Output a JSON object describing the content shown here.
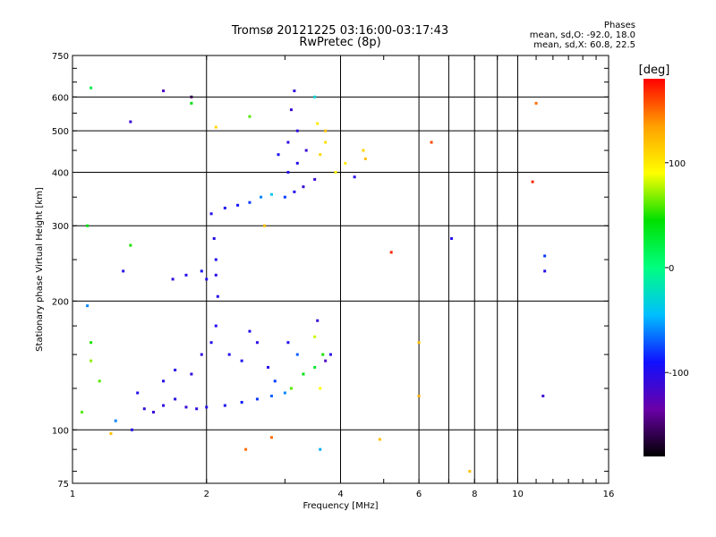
{
  "chart_data": {
    "type": "scatter",
    "title": "Tromsø 20121225 03:16:00-03:17:43",
    "subtitle": "RwPretec (8p)",
    "phase_heading": "Phases",
    "phase_o": "mean, sd,O:  -92.0,  18.0",
    "phase_x": "mean, sd,X:   60.8,  22.5",
    "xlabel": "Frequency [MHz]",
    "ylabel": "Stationary phase Virtual Height [km]",
    "x_scale": "log",
    "y_scale": "log",
    "xlim": [
      1,
      16
    ],
    "ylim": [
      75,
      750
    ],
    "x_ticks": [
      1,
      2,
      4,
      6,
      8,
      10,
      16
    ],
    "y_ticks": [
      75,
      100,
      200,
      300,
      400,
      500,
      600,
      750
    ],
    "x_gridlines": [
      2,
      4,
      6,
      7,
      8,
      9,
      10
    ],
    "y_gridlines": [
      100,
      200,
      300,
      400,
      500,
      600
    ],
    "grid": true,
    "colorbar": {
      "label": "[deg]",
      "range": [
        -180,
        180
      ],
      "ticks": [
        100,
        0,
        -100
      ],
      "stops": [
        "#000000",
        "#6a00a8",
        "#1010ff",
        "#00bfff",
        "#00ff80",
        "#00e000",
        "#ffff00",
        "#ffa000",
        "#ff0000"
      ]
    },
    "series": [
      {
        "points": [
          [
            1.36,
            100,
            -100
          ],
          [
            1.45,
            112,
            -108
          ],
          [
            1.52,
            110,
            -110
          ],
          [
            1.6,
            114,
            -106
          ],
          [
            1.7,
            118,
            -102
          ],
          [
            1.8,
            113,
            -110
          ],
          [
            1.9,
            112,
            -104
          ],
          [
            2.0,
            113,
            -100
          ],
          [
            2.2,
            114,
            -96
          ],
          [
            2.4,
            116,
            -88
          ],
          [
            2.6,
            118,
            -80
          ],
          [
            2.8,
            120,
            -70
          ],
          [
            3.0,
            122,
            -60
          ],
          [
            1.4,
            122,
            -98
          ],
          [
            1.6,
            130,
            -100
          ],
          [
            1.7,
            138,
            -102
          ],
          [
            1.85,
            135,
            -106
          ],
          [
            1.95,
            150,
            -104
          ],
          [
            2.05,
            160,
            -100
          ],
          [
            2.1,
            175,
            -100
          ],
          [
            2.25,
            150,
            -98
          ],
          [
            2.4,
            145,
            -96
          ],
          [
            2.5,
            170,
            -100
          ],
          [
            2.6,
            160,
            -104
          ],
          [
            2.75,
            140,
            -100
          ],
          [
            2.85,
            130,
            -80
          ],
          [
            3.05,
            160,
            -100
          ],
          [
            3.2,
            150,
            -70
          ],
          [
            3.3,
            135,
            40
          ],
          [
            3.1,
            125,
            60
          ],
          [
            3.5,
            140,
            30
          ],
          [
            3.5,
            165,
            80
          ],
          [
            3.6,
            125,
            90
          ],
          [
            3.65,
            150,
            50
          ],
          [
            3.55,
            180,
            -110
          ],
          [
            3.7,
            145,
            -120
          ],
          [
            2.12,
            205,
            -100
          ],
          [
            2.1,
            250,
            -100
          ],
          [
            2.08,
            280,
            -102
          ],
          [
            1.68,
            225,
            -104
          ],
          [
            1.8,
            230,
            -100
          ],
          [
            1.95,
            235,
            -96
          ],
          [
            2.0,
            225,
            -98
          ],
          [
            2.1,
            230,
            -100
          ],
          [
            2.05,
            320,
            -100
          ],
          [
            2.2,
            330,
            -96
          ],
          [
            2.35,
            335,
            -90
          ],
          [
            2.5,
            340,
            -80
          ],
          [
            2.65,
            350,
            -60
          ],
          [
            2.8,
            355,
            -40
          ],
          [
            3.0,
            350,
            -80
          ],
          [
            3.15,
            360,
            -100
          ],
          [
            3.3,
            370,
            -110
          ],
          [
            3.5,
            385,
            -112
          ],
          [
            3.2,
            420,
            -100
          ],
          [
            3.05,
            470,
            -105
          ],
          [
            3.1,
            560,
            -110
          ],
          [
            3.15,
            620,
            -108
          ],
          [
            3.2,
            500,
            -104
          ],
          [
            3.35,
            450,
            -110
          ],
          [
            3.05,
            400,
            -100
          ],
          [
            2.9,
            440,
            -96
          ],
          [
            3.55,
            520,
            100
          ],
          [
            3.6,
            440,
            110
          ],
          [
            3.7,
            470,
            105
          ],
          [
            3.9,
            400,
            95
          ],
          [
            4.1,
            420,
            100
          ],
          [
            4.5,
            450,
            110
          ],
          [
            4.55,
            430,
            120
          ],
          [
            3.5,
            600,
            -30
          ],
          [
            3.7,
            500,
            120
          ],
          [
            2.7,
            300,
            120
          ],
          [
            4.3,
            390,
            -100
          ],
          [
            5.2,
            260,
            170
          ],
          [
            6.4,
            470,
            160
          ],
          [
            7.1,
            280,
            -100
          ],
          [
            7.8,
            80,
            120
          ],
          [
            10.8,
            380,
            170
          ],
          [
            11.5,
            255,
            -80
          ],
          [
            11.5,
            235,
            -100
          ],
          [
            11.4,
            120,
            -110
          ],
          [
            1.05,
            110,
            60
          ],
          [
            1.08,
            300,
            40
          ],
          [
            1.1,
            630,
            20
          ],
          [
            1.35,
            525,
            -110
          ],
          [
            1.6,
            620,
            -120
          ],
          [
            1.85,
            600,
            -160
          ],
          [
            1.85,
            580,
            40
          ],
          [
            2.1,
            510,
            110
          ],
          [
            2.5,
            540,
            60
          ],
          [
            1.35,
            270,
            50
          ],
          [
            1.3,
            235,
            -100
          ],
          [
            1.1,
            160,
            50
          ],
          [
            1.1,
            145,
            70
          ],
          [
            1.08,
            195,
            -60
          ],
          [
            1.15,
            130,
            60
          ],
          [
            1.25,
            105,
            -60
          ],
          [
            1.22,
            98,
            120
          ],
          [
            2.8,
            96,
            150
          ],
          [
            3.8,
            150,
            -100
          ],
          [
            3.6,
            90,
            -50
          ],
          [
            6.0,
            160,
            120
          ],
          [
            6.0,
            120,
            130
          ],
          [
            11.0,
            580,
            150
          ],
          [
            2.45,
            90,
            150
          ],
          [
            4.9,
            95,
            120
          ]
        ]
      }
    ]
  }
}
